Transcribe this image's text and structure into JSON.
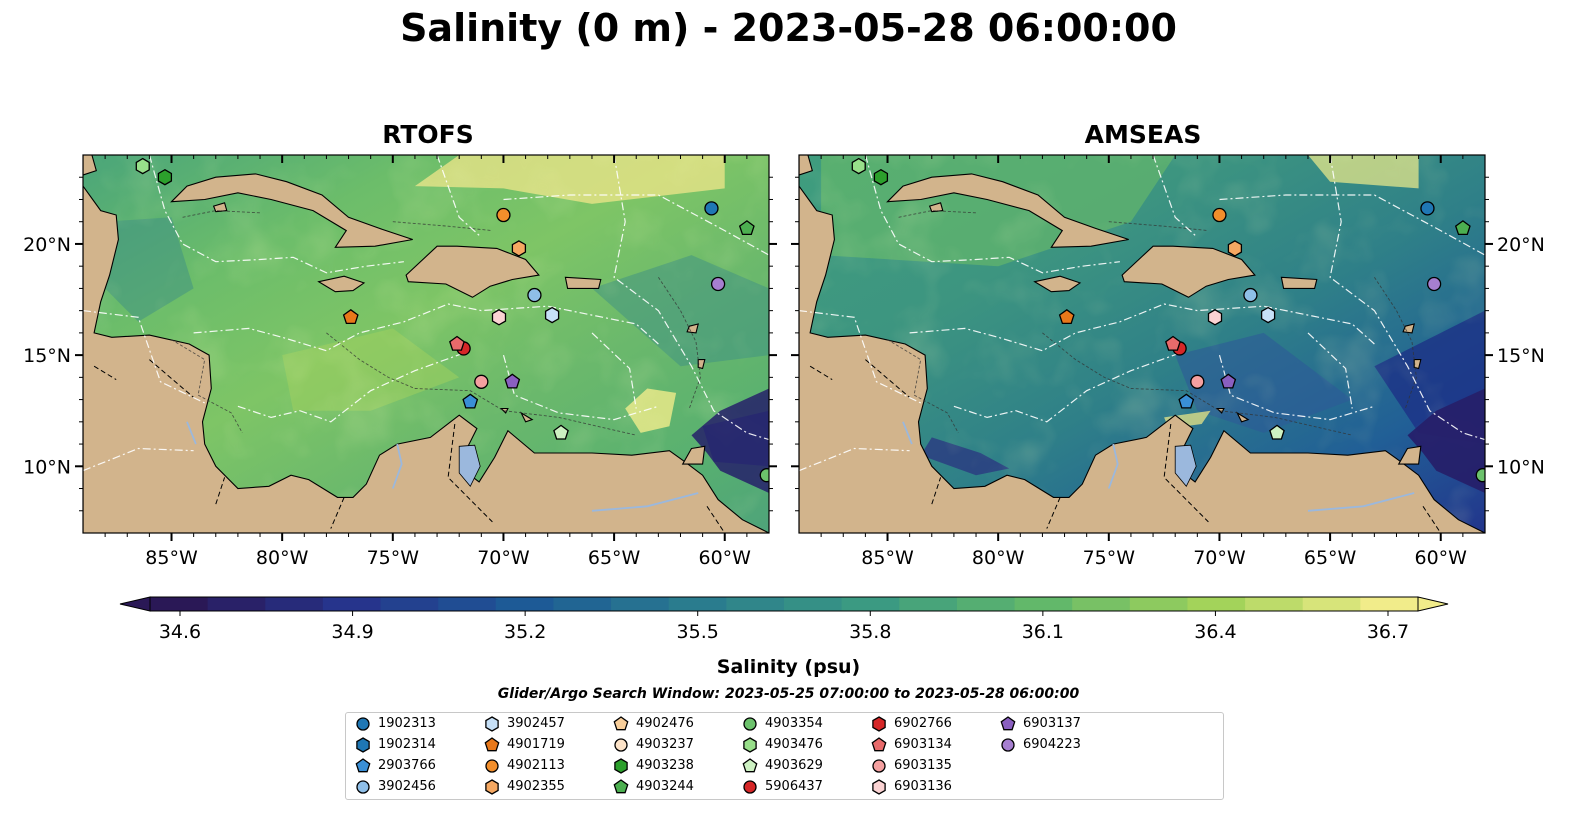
{
  "title": "Salinity (0 m) - 2023-05-28 06:00:00",
  "panels": [
    {
      "title": "RTOFS",
      "ocean_mode": "rtofs"
    },
    {
      "title": "AMSEAS",
      "ocean_mode": "amseas"
    }
  ],
  "map": {
    "lon_range": [
      -89,
      -58
    ],
    "lat_range": [
      7,
      24
    ],
    "lat_ticks": [
      {
        "lat": 10,
        "label": "10°N"
      },
      {
        "lat": 15,
        "label": "15°N"
      },
      {
        "lat": 20,
        "label": "20°N"
      }
    ],
    "lon_ticks": [
      {
        "lon": -85,
        "label": "85°W"
      },
      {
        "lon": -80,
        "label": "80°W"
      },
      {
        "lon": -75,
        "label": "75°W"
      },
      {
        "lon": -70,
        "label": "70°W"
      },
      {
        "lon": -65,
        "label": "65°W"
      },
      {
        "lon": -60,
        "label": "60°W"
      }
    ],
    "land_color": "#d2b48c",
    "lake_color": "#9bb8dd"
  },
  "colorbar": {
    "label": "Salinity (psu)",
    "ticks": [
      "34.6",
      "34.9",
      "35.2",
      "35.5",
      "35.8",
      "36.1",
      "36.4",
      "36.7"
    ],
    "stops": [
      "#2a1856",
      "#26348c",
      "#1d5a96",
      "#2a7c8e",
      "#3b9a82",
      "#62b86a",
      "#a3d35a",
      "#f1ec8a"
    ]
  },
  "search_window": "Glider/Argo Search Window: 2023-05-25 07:00:00 to 2023-05-28 06:00:00",
  "platforms": [
    {
      "id": "1902313",
      "shape": "circle",
      "color": "#1f77b4",
      "lon": -60.6,
      "lat": 21.6
    },
    {
      "id": "1902314",
      "shape": "hexagon",
      "color": "#1f77b4",
      "lon": null,
      "lat": null
    },
    {
      "id": "2903766",
      "shape": "pentagon",
      "color": "#3a8fd6",
      "lon": -71.5,
      "lat": 12.9
    },
    {
      "id": "3902456",
      "shape": "circle",
      "color": "#8fbfe8",
      "lon": -68.6,
      "lat": 17.7
    },
    {
      "id": "3902457",
      "shape": "hexagon",
      "color": "#c6e0f7",
      "lon": -67.8,
      "lat": 16.8
    },
    {
      "id": "4901719",
      "shape": "pentagon",
      "color": "#e8781a",
      "lon": -76.9,
      "lat": 16.7
    },
    {
      "id": "4902113",
      "shape": "circle",
      "color": "#f28e2b",
      "lon": -70.0,
      "lat": 21.3
    },
    {
      "id": "4902355",
      "shape": "hexagon",
      "color": "#f5a862",
      "lon": -69.3,
      "lat": 19.8
    },
    {
      "id": "4902476",
      "shape": "pentagon",
      "color": "#f9cf9b",
      "lon": null,
      "lat": null
    },
    {
      "id": "4903237",
      "shape": "circle",
      "color": "#fde3c8",
      "lon": null,
      "lat": null
    },
    {
      "id": "4903238",
      "shape": "hexagon",
      "color": "#2ca02c",
      "lon": -85.3,
      "lat": 23.0
    },
    {
      "id": "4903244",
      "shape": "pentagon",
      "color": "#4caf50",
      "lon": -59.0,
      "lat": 20.7
    },
    {
      "id": "4903354",
      "shape": "circle",
      "color": "#6cc26c",
      "lon": -58.1,
      "lat": 9.6
    },
    {
      "id": "4903476",
      "shape": "hexagon",
      "color": "#98df8a",
      "lon": -86.3,
      "lat": 23.5
    },
    {
      "id": "4903629",
      "shape": "pentagon",
      "color": "#cdf1c2",
      "lon": -67.4,
      "lat": 11.5
    },
    {
      "id": "5906437",
      "shape": "circle",
      "color": "#d62728",
      "lon": -71.8,
      "lat": 15.3
    },
    {
      "id": "6902766",
      "shape": "hexagon",
      "color": "#d62728",
      "lon": null,
      "lat": null
    },
    {
      "id": "6903134",
      "shape": "pentagon",
      "color": "#e86a6b",
      "lon": -72.1,
      "lat": 15.5
    },
    {
      "id": "6903135",
      "shape": "circle",
      "color": "#f4a0a0",
      "lon": -71.0,
      "lat": 13.8
    },
    {
      "id": "6903136",
      "shape": "hexagon",
      "color": "#fbd3d3",
      "lon": -70.2,
      "lat": 16.7
    },
    {
      "id": "6903137",
      "shape": "pentagon",
      "color": "#8a5fc0",
      "lon": -69.6,
      "lat": 13.8
    },
    {
      "id": "6904223",
      "shape": "circle",
      "color": "#a67fd0",
      "lon": -60.3,
      "lat": 18.2
    }
  ]
}
